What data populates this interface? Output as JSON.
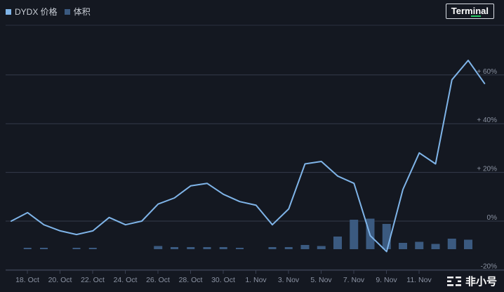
{
  "legend": {
    "price_label": "DYDX 价格",
    "volume_label": "体积",
    "price_color": "#7fb4e8",
    "volume_color": "#3b5a80"
  },
  "terminal_button": {
    "label": "Terminal"
  },
  "watermark": {
    "text": "非小号",
    "icon": "feixiaohao-logo-icon"
  },
  "chart_data": {
    "type": "line",
    "x_ticks": [
      "18. Oct",
      "20. Oct",
      "22. Oct",
      "24. Oct",
      "26. Oct",
      "28. Oct",
      "30. Oct",
      "1. Nov",
      "3. Nov",
      "5. Nov",
      "7. Nov",
      "9. Nov",
      "11. Nov"
    ],
    "y_ticks": [
      "-20%",
      "0%",
      "+ 20%",
      "+ 40%",
      "+ 60%"
    ],
    "ylim": [
      -20,
      80
    ],
    "grid": true,
    "series": [
      {
        "name": "DYDX 价格",
        "values": [
          0,
          3.5,
          -1.5,
          -4,
          -5.5,
          -4,
          1.5,
          -1.5,
          0,
          7,
          9.5,
          14.5,
          15.5,
          11,
          8,
          6.5,
          -1.5,
          5,
          23.5,
          24.5,
          18.5,
          15.5,
          -6,
          -12.5,
          13,
          28,
          23.5,
          58,
          66,
          56.5
        ]
      },
      {
        "name": "体积",
        "values": [
          0,
          1,
          1,
          0,
          1,
          1,
          0,
          0,
          0,
          3,
          2,
          2,
          2,
          2,
          1,
          0,
          2,
          2,
          4,
          3,
          12,
          28,
          29,
          24,
          6,
          7,
          5,
          10,
          9,
          0
        ]
      }
    ]
  }
}
